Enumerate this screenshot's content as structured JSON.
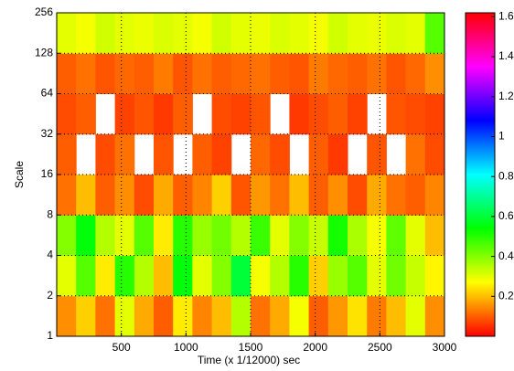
{
  "chart_data": {
    "type": "heatmap",
    "xlabel": "Time (x 1/12000) sec",
    "ylabel": "Scale",
    "xlim": [
      0,
      3000
    ],
    "xticks": [
      500,
      1000,
      1500,
      2000,
      2500,
      3000
    ],
    "ylim": [
      1,
      256
    ],
    "yticks": [
      1,
      2,
      4,
      8,
      16,
      32,
      64,
      128,
      256
    ],
    "log_y": true,
    "grid": true,
    "xbins": [
      0,
      150,
      300,
      450,
      600,
      750,
      900,
      1050,
      1200,
      1350,
      1500,
      1650,
      1800,
      1950,
      2100,
      2250,
      2400,
      2550,
      2700,
      2850,
      3000
    ],
    "ybins": [
      1,
      2,
      4,
      8,
      16,
      32,
      64,
      128,
      256
    ],
    "z": [
      [
        0.15,
        0.22,
        0.12,
        0.3,
        0.18,
        0.1,
        0.25,
        0.14,
        0.2,
        0.35,
        0.12,
        0.18,
        0.28,
        0.1,
        0.16,
        0.24,
        0.13,
        0.2,
        0.3,
        0.15
      ],
      [
        0.3,
        0.45,
        0.25,
        0.5,
        0.35,
        0.2,
        0.55,
        0.3,
        0.4,
        0.6,
        0.28,
        0.35,
        0.5,
        0.22,
        0.38,
        0.45,
        0.3,
        0.42,
        0.33,
        0.26
      ],
      [
        0.4,
        0.55,
        0.35,
        0.3,
        0.45,
        0.25,
        0.5,
        0.38,
        0.42,
        0.35,
        0.48,
        0.3,
        0.4,
        0.33,
        0.52,
        0.36,
        0.28,
        0.44,
        0.3,
        0.2
      ],
      [
        0.12,
        0.2,
        0.1,
        0.15,
        0.08,
        0.18,
        0.1,
        0.14,
        0.22,
        0.09,
        0.16,
        0.12,
        0.2,
        0.1,
        0.15,
        0.08,
        0.18,
        0.12,
        0.1,
        0.14
      ],
      [
        0.1,
        null,
        0.08,
        0.12,
        null,
        0.09,
        null,
        0.1,
        0.07,
        null,
        0.11,
        0.08,
        null,
        0.1,
        0.06,
        null,
        0.09,
        null,
        0.12,
        0.08
      ],
      [
        0.08,
        0.1,
        null,
        0.07,
        0.09,
        0.06,
        0.1,
        null,
        0.08,
        0.07,
        0.09,
        null,
        0.06,
        0.08,
        0.1,
        0.07,
        null,
        0.09,
        0.08,
        0.07
      ],
      [
        0.1,
        0.12,
        0.09,
        0.11,
        0.1,
        0.13,
        0.09,
        0.12,
        0.1,
        0.11,
        0.12,
        0.1,
        0.09,
        0.13,
        0.11,
        0.1,
        0.12,
        0.09,
        0.11,
        0.15
      ],
      [
        0.3,
        0.28,
        0.32,
        0.3,
        0.29,
        0.31,
        0.3,
        0.28,
        0.32,
        0.3,
        0.29,
        0.31,
        0.3,
        0.28,
        0.32,
        0.3,
        0.29,
        0.31,
        0.3,
        0.45
      ]
    ],
    "clim": [
      0,
      1.62
    ],
    "cticks": [
      0.2,
      0.4,
      0.6,
      0.8,
      1,
      1.2,
      1.4,
      1.6
    ],
    "colormap": [
      "#ff0000",
      "#ffff00",
      "#00ff00",
      "#00ffff",
      "#0000ff",
      "#ff00ff",
      "#ff0000"
    ]
  }
}
